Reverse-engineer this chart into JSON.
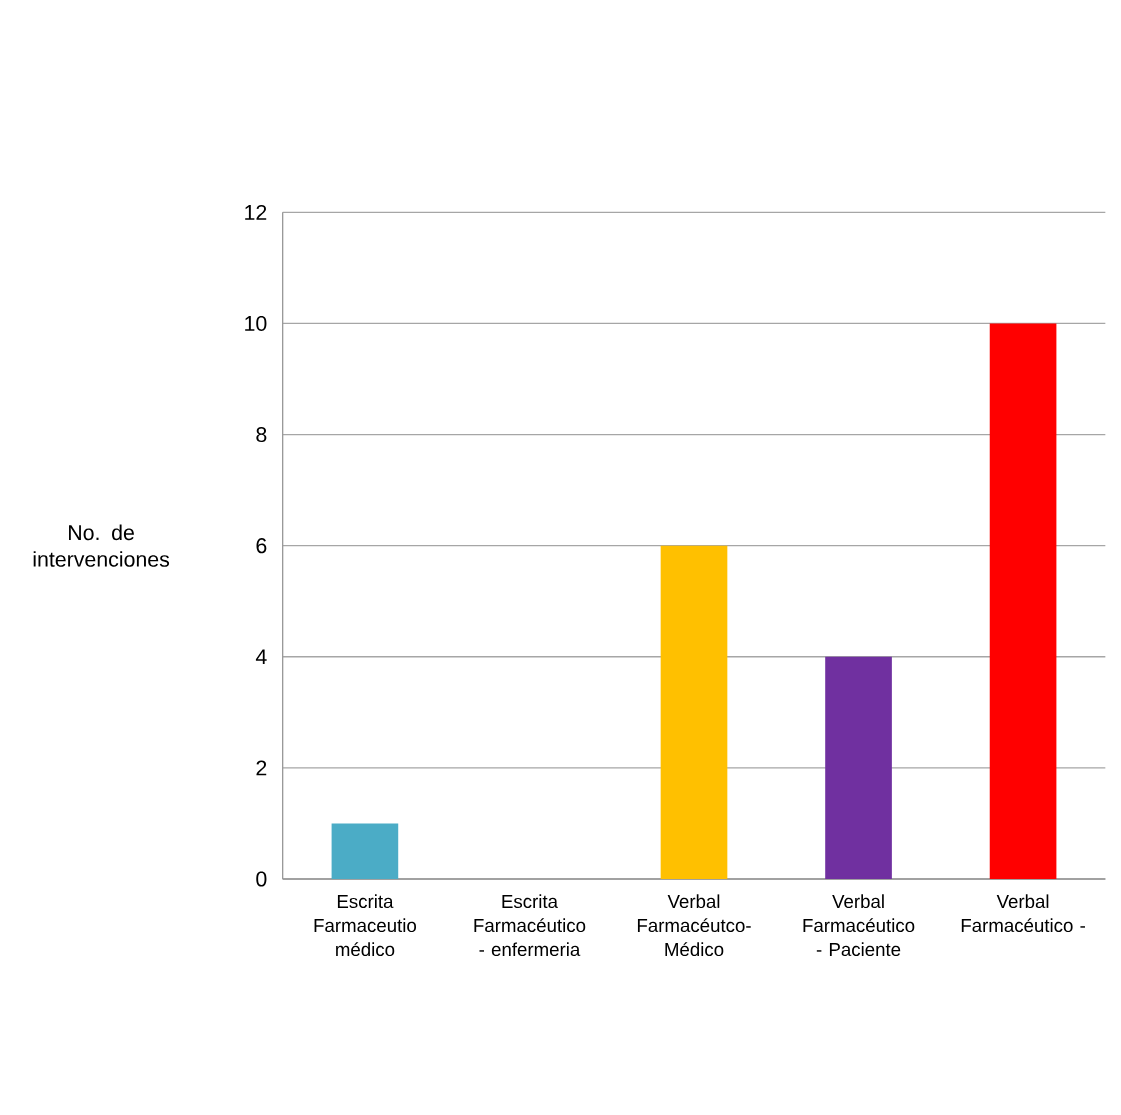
{
  "chart_data": {
    "type": "bar",
    "ylabel": "No. de intervenciones",
    "categories": [
      "Escrita Farmaceutio médico",
      "Escrita Farmacéutico - enfermeria",
      "Verbal Farmacéutco- Médico",
      "Verbal Farmacéutico - Paciente",
      "Verbal Farmacéutico -"
    ],
    "values": [
      1,
      0,
      6,
      4,
      10
    ],
    "colors": [
      "#4bacc6",
      "#4f81bd",
      "#ffc000",
      "#7030a0",
      "#ff0000"
    ],
    "ylim": [
      0,
      12
    ],
    "yticks": [
      0,
      2,
      4,
      6,
      8,
      10,
      12
    ],
    "grid": "y"
  }
}
